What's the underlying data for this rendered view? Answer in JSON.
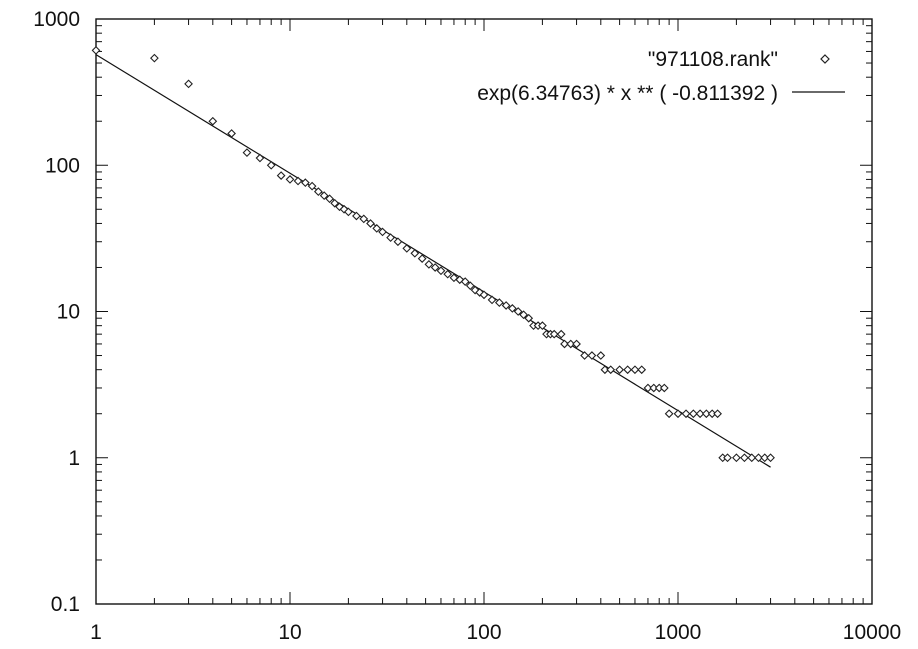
{
  "chart_data": {
    "type": "scatter",
    "x_scale": "log",
    "y_scale": "log",
    "xlim": [
      1,
      10000
    ],
    "ylim": [
      0.1,
      1000
    ],
    "grid": false,
    "legend_position": "top-right",
    "x_ticks": [
      {
        "value": 1,
        "label": "1"
      },
      {
        "value": 10,
        "label": "10"
      },
      {
        "value": 100,
        "label": "100"
      },
      {
        "value": 1000,
        "label": "1000"
      },
      {
        "value": 10000,
        "label": "10000"
      }
    ],
    "y_ticks": [
      {
        "value": 0.1,
        "label": "0.1"
      },
      {
        "value": 1,
        "label": "1"
      },
      {
        "value": 10,
        "label": "10"
      },
      {
        "value": 100,
        "label": "100"
      },
      {
        "value": 1000,
        "label": "1000"
      }
    ],
    "series": [
      {
        "name": "\"971108.rank\"",
        "marker": "diamond",
        "color": "#222222",
        "points": [
          [
            1,
            610
          ],
          [
            2,
            540
          ],
          [
            3,
            360
          ],
          [
            4,
            200
          ],
          [
            5,
            165
          ],
          [
            6,
            122
          ],
          [
            7,
            112
          ],
          [
            8,
            100
          ],
          [
            9,
            85
          ],
          [
            10,
            80
          ],
          [
            11,
            78
          ],
          [
            12,
            76
          ],
          [
            13,
            72
          ],
          [
            14,
            66
          ],
          [
            15,
            62
          ],
          [
            16,
            59
          ],
          [
            17,
            55
          ],
          [
            18,
            52
          ],
          [
            19,
            50
          ],
          [
            20,
            48
          ],
          [
            22,
            45
          ],
          [
            24,
            43
          ],
          [
            26,
            40
          ],
          [
            28,
            37
          ],
          [
            30,
            35
          ],
          [
            33,
            32
          ],
          [
            36,
            30
          ],
          [
            40,
            27
          ],
          [
            44,
            25
          ],
          [
            48,
            23
          ],
          [
            52,
            21
          ],
          [
            56,
            20
          ],
          [
            60,
            19
          ],
          [
            65,
            18
          ],
          [
            70,
            17
          ],
          [
            75,
            16.5
          ],
          [
            80,
            16
          ],
          [
            85,
            15
          ],
          [
            90,
            14
          ],
          [
            95,
            13.5
          ],
          [
            100,
            13
          ],
          [
            110,
            12
          ],
          [
            120,
            11.5
          ],
          [
            130,
            11
          ],
          [
            140,
            10.5
          ],
          [
            150,
            10
          ],
          [
            160,
            9.5
          ],
          [
            170,
            9
          ],
          [
            180,
            8
          ],
          [
            190,
            8
          ],
          [
            200,
            8
          ],
          [
            210,
            7
          ],
          [
            220,
            7
          ],
          [
            230,
            7
          ],
          [
            250,
            7
          ],
          [
            260,
            6
          ],
          [
            280,
            6
          ],
          [
            300,
            6
          ],
          [
            330,
            5
          ],
          [
            360,
            5
          ],
          [
            400,
            5
          ],
          [
            420,
            4
          ],
          [
            450,
            4
          ],
          [
            500,
            4
          ],
          [
            550,
            4
          ],
          [
            600,
            4
          ],
          [
            650,
            4
          ],
          [
            700,
            3
          ],
          [
            750,
            3
          ],
          [
            800,
            3
          ],
          [
            850,
            3
          ],
          [
            900,
            2
          ],
          [
            1000,
            2
          ],
          [
            1100,
            2
          ],
          [
            1200,
            2
          ],
          [
            1300,
            2
          ],
          [
            1400,
            2
          ],
          [
            1500,
            2
          ],
          [
            1600,
            2
          ],
          [
            1700,
            1
          ],
          [
            1800,
            1
          ],
          [
            2000,
            1
          ],
          [
            2200,
            1
          ],
          [
            2400,
            1
          ],
          [
            2600,
            1
          ],
          [
            2800,
            1
          ],
          [
            3000,
            1
          ]
        ]
      },
      {
        "name": "exp(6.34763)  * x ** (  -0.811392 )",
        "type": "line",
        "color": "#111111",
        "fit_ln_coefficient": 6.34763,
        "fit_exponent": -0.811392,
        "x_domain": [
          1,
          3000
        ]
      }
    ]
  }
}
